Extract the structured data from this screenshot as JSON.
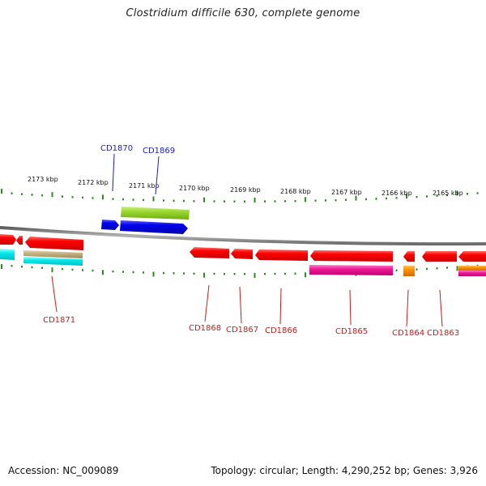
{
  "title": "Clostridium difficile 630, complete genome",
  "footer": {
    "accession": "Accession: NC_009089",
    "summary": "Topology: circular; Length: 4,290,252 bp; Genes: 3,926"
  },
  "colors": {
    "tick": "#2e8b22",
    "backbone": "#8c8c8c",
    "label_forward": "#1a1acc",
    "label_reverse": "#cc1a1a"
  },
  "scale": {
    "unit": "kbp",
    "ticks": [
      "2173 kbp",
      "2172 kbp",
      "2171 kbp",
      "2170 kbp",
      "2169 kbp",
      "2168 kbp",
      "2167 kbp",
      "2166 kbp",
      "2165 kbp"
    ]
  },
  "genes": [
    {
      "name": "CD1870",
      "strand": "+",
      "label_color": "#1a1acc"
    },
    {
      "name": "CD1869",
      "strand": "+",
      "label_color": "#1a1acc"
    },
    {
      "name": "CD1871",
      "strand": "-",
      "label_color": "#cc1a1a"
    },
    {
      "name": "CD1868",
      "strand": "-",
      "label_color": "#cc1a1a"
    },
    {
      "name": "CD1867",
      "strand": "-",
      "label_color": "#cc1a1a"
    },
    {
      "name": "CD1866",
      "strand": "-",
      "label_color": "#cc1a1a"
    },
    {
      "name": "CD1865",
      "strand": "-",
      "label_color": "#cc1a1a"
    },
    {
      "name": "CD1864",
      "strand": "-",
      "label_color": "#cc1a1a"
    },
    {
      "name": "CD1863",
      "strand": "-",
      "label_color": "#cc1a1a"
    }
  ]
}
